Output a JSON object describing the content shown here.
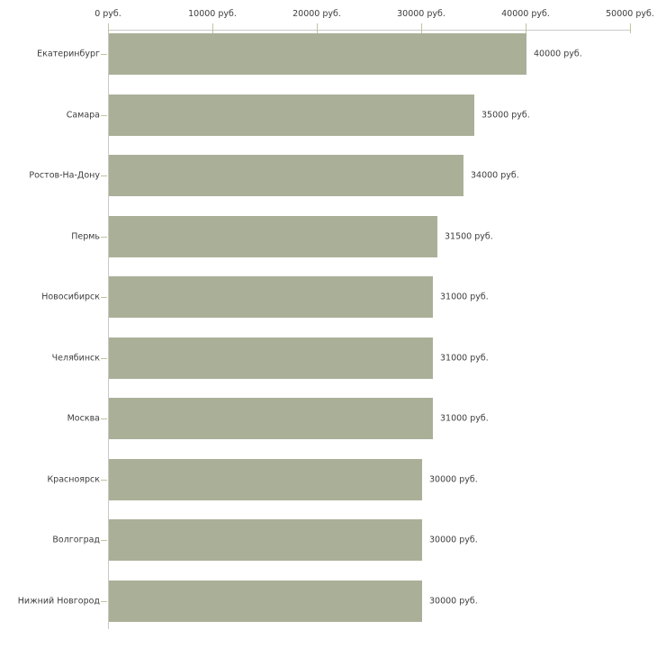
{
  "chart": {
    "background": "#ffffff",
    "bar_color": "#aab098",
    "axis_line_color": "#c9c9c6",
    "tick_color": "#c3c39d",
    "text_color": "#3d3d3d"
  },
  "chart_data": {
    "type": "bar",
    "orientation": "horizontal",
    "title": "",
    "xlabel": "",
    "ylabel": "",
    "unit": "руб.",
    "grid": false,
    "legend": null,
    "xlim": [
      0,
      50000
    ],
    "x_ticks": [
      0,
      10000,
      20000,
      30000,
      40000,
      50000
    ],
    "x_tick_labels": [
      "0 руб.",
      "10000 руб.",
      "20000 руб.",
      "30000 руб.",
      "40000 руб.",
      "50000 руб."
    ],
    "categories": [
      "Екатеринбург",
      "Самара",
      "Ростов-На-Дону",
      "Пермь",
      "Новосибирск",
      "Челябинск",
      "Москва",
      "Красноярск",
      "Волгоград",
      "Нижний Новгород"
    ],
    "values": [
      40000,
      35000,
      34000,
      31500,
      31000,
      31000,
      31000,
      30000,
      30000,
      30000
    ],
    "value_labels": [
      "40000 руб.",
      "35000 руб.",
      "34000 руб.",
      "31500 руб.",
      "31000 руб.",
      "31000 руб.",
      "31000 руб.",
      "30000 руб.",
      "30000 руб.",
      "30000 руб."
    ]
  }
}
